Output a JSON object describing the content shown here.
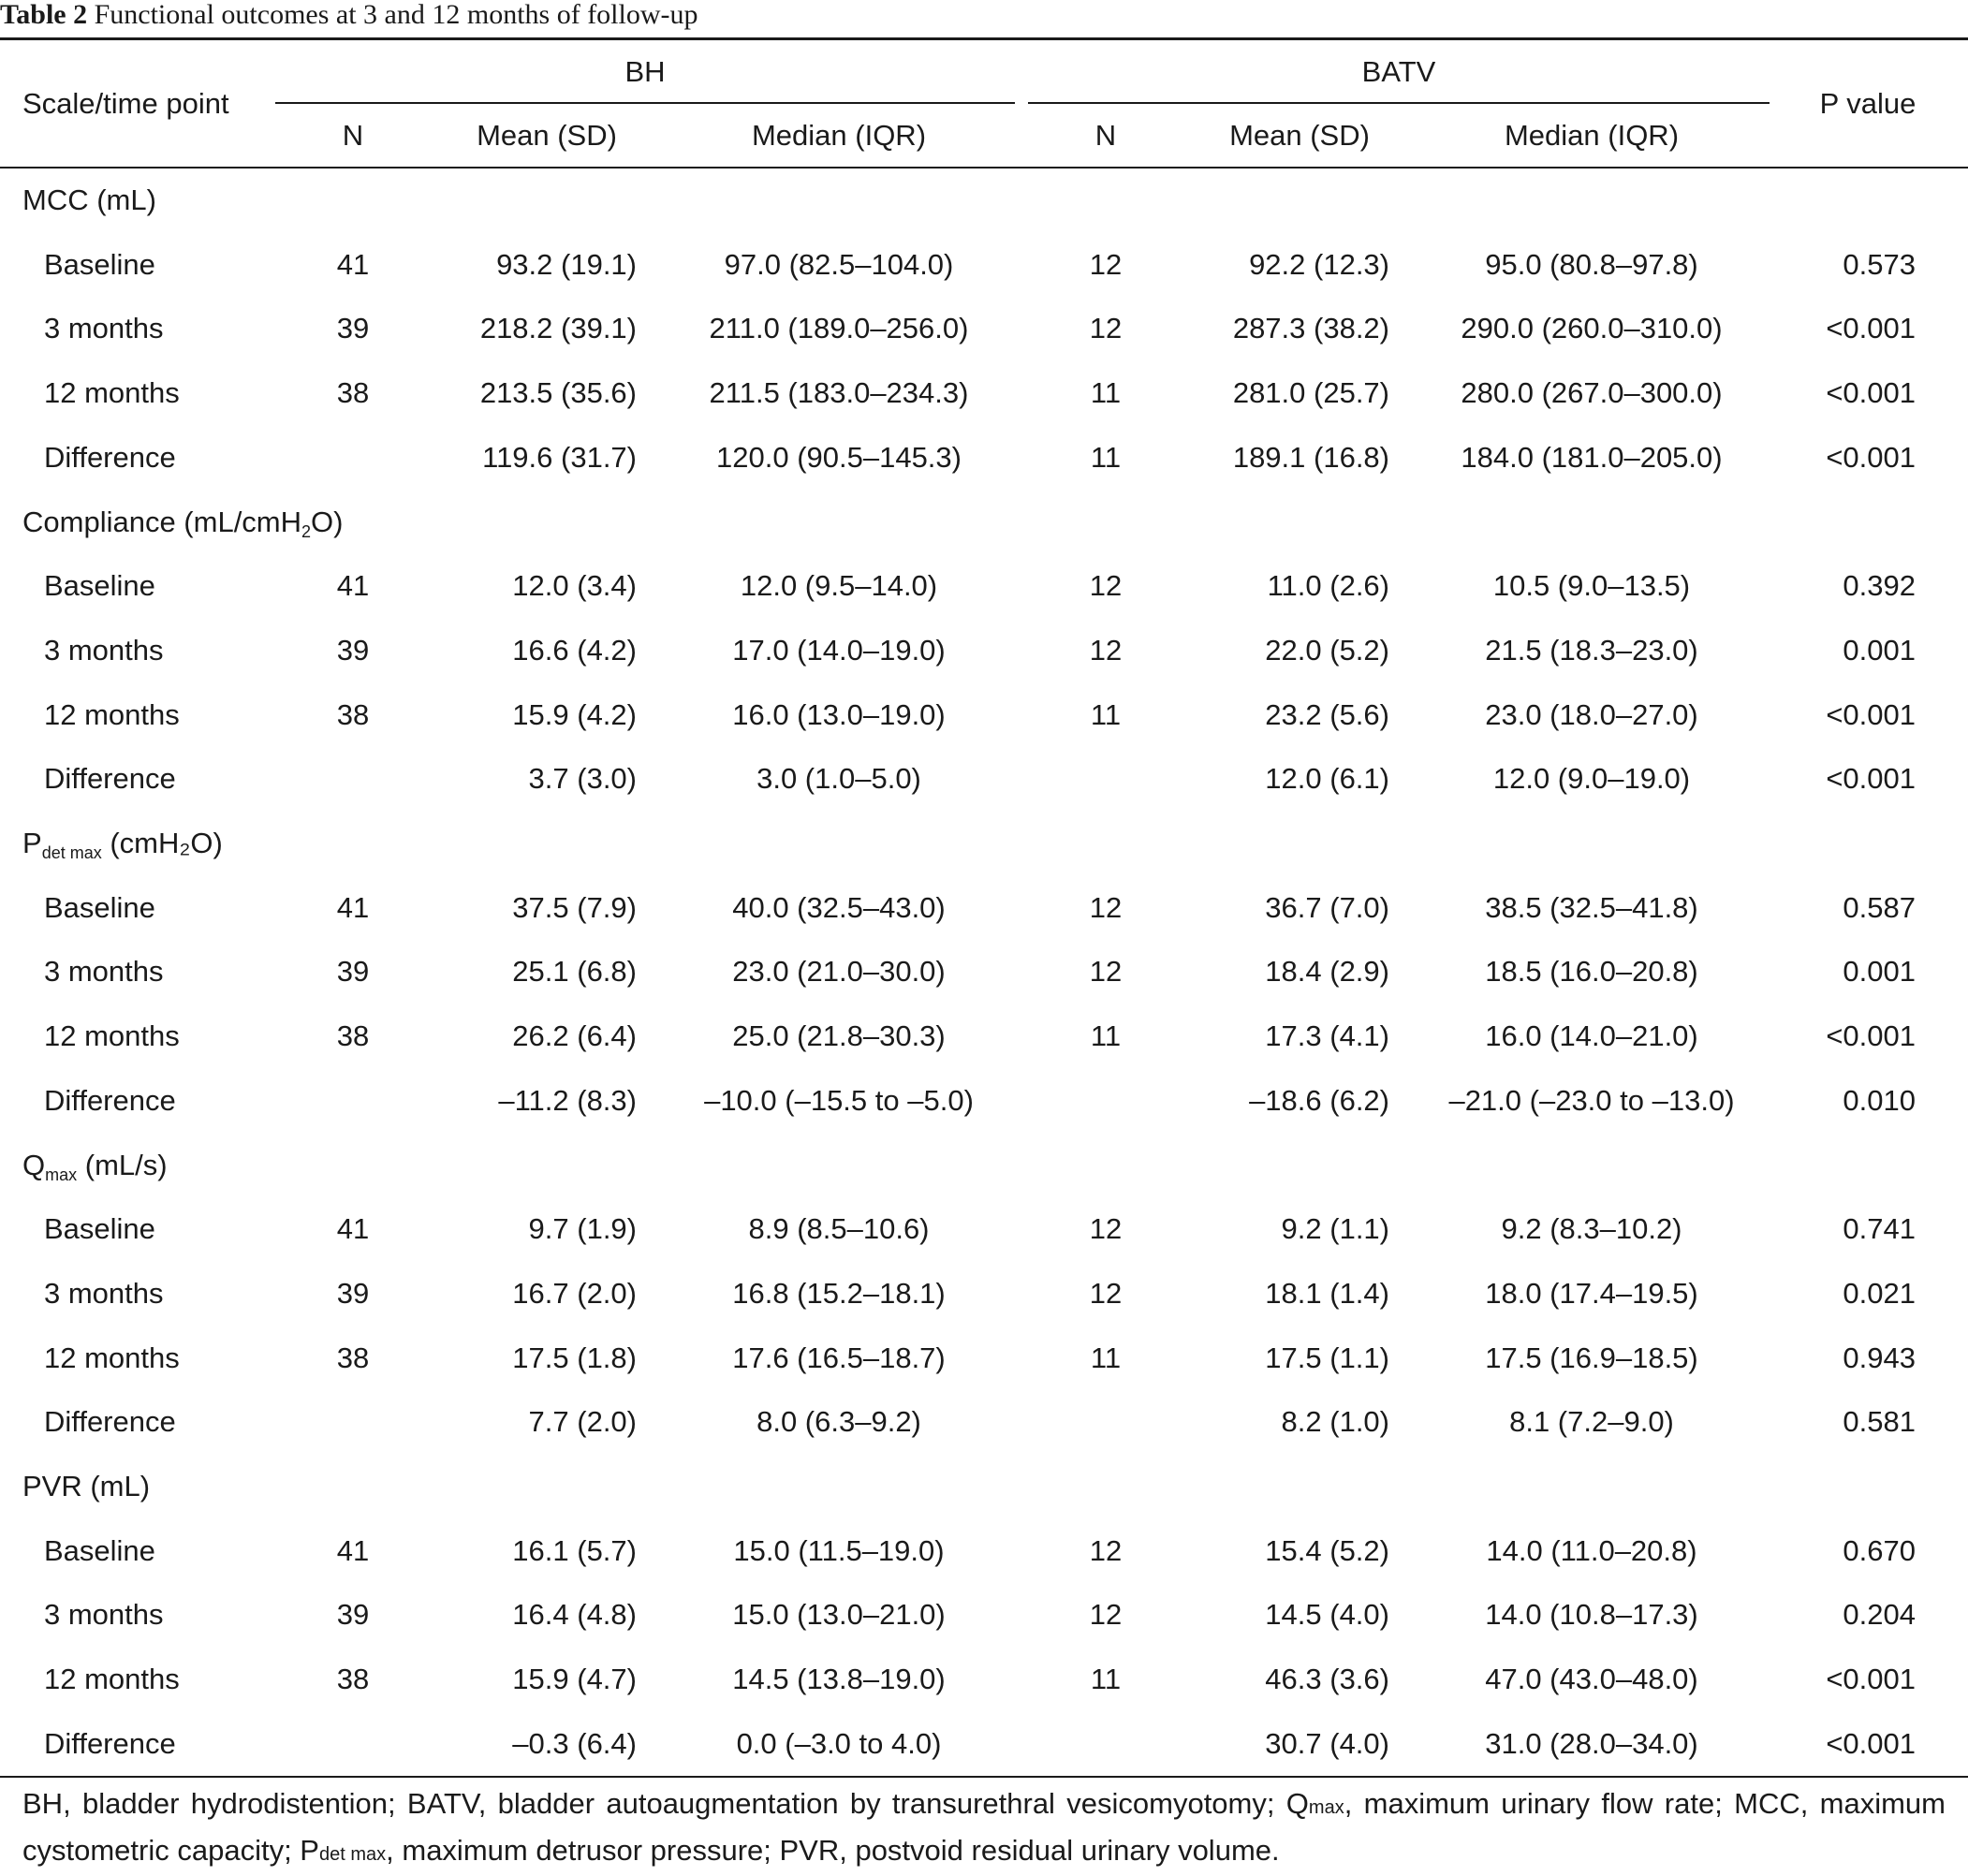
{
  "table": {
    "label": "Table 2",
    "caption": "Functional outcomes at 3 and 12 months of follow-up",
    "header": {
      "first_col": "Scale/time point",
      "group_bh": "BH",
      "group_batv": "BATV",
      "pvalue": "P value",
      "n": "N",
      "mean": "Mean (SD)",
      "median": "Median (IQR)"
    },
    "sections": [
      {
        "name_main": "MCC (mL)",
        "name_sub": "",
        "name_tail": "",
        "rows": [
          {
            "label": "Baseline",
            "bh_n": "41",
            "bh_mean": "93.2 (19.1)",
            "bh_median": "97.0 (82.5–104.0)",
            "batv_n": "12",
            "batv_mean": "92.2 (12.3)",
            "batv_median": "95.0 (80.8–97.8)",
            "p": "0.573"
          },
          {
            "label": "3 months",
            "bh_n": "39",
            "bh_mean": "218.2 (39.1)",
            "bh_median": "211.0 (189.0–256.0)",
            "batv_n": "12",
            "batv_mean": "287.3 (38.2)",
            "batv_median": "290.0 (260.0–310.0)",
            "p": "<0.001"
          },
          {
            "label": "12 months",
            "bh_n": "38",
            "bh_mean": "213.5 (35.6)",
            "bh_median": "211.5 (183.0–234.3)",
            "batv_n": "11",
            "batv_mean": "281.0 (25.7)",
            "batv_median": "280.0 (267.0–300.0)",
            "p": "<0.001"
          },
          {
            "label": "Difference",
            "bh_n": "",
            "bh_mean": "119.6 (31.7)",
            "bh_median": "120.0 (90.5–145.3)",
            "batv_n": "11",
            "batv_mean": "189.1 (16.8)",
            "batv_median": "184.0 (181.0–205.0)",
            "p": "<0.001"
          }
        ]
      },
      {
        "name_main": "Compliance (mL/cmH",
        "name_sub": "2",
        "name_tail": "O)",
        "rows": [
          {
            "label": "Baseline",
            "bh_n": "41",
            "bh_mean": "12.0 (3.4)",
            "bh_median": "12.0 (9.5–14.0)",
            "batv_n": "12",
            "batv_mean": "11.0 (2.6)",
            "batv_median": "10.5 (9.0–13.5)",
            "p": "0.392"
          },
          {
            "label": "3 months",
            "bh_n": "39",
            "bh_mean": "16.6 (4.2)",
            "bh_median": "17.0 (14.0–19.0)",
            "batv_n": "12",
            "batv_mean": "22.0 (5.2)",
            "batv_median": "21.5 (18.3–23.0)",
            "p": "0.001"
          },
          {
            "label": "12 months",
            "bh_n": "38",
            "bh_mean": "15.9 (4.2)",
            "bh_median": "16.0 (13.0–19.0)",
            "batv_n": "11",
            "batv_mean": "23.2 (5.6)",
            "batv_median": "23.0 (18.0–27.0)",
            "p": "<0.001"
          },
          {
            "label": "Difference",
            "bh_n": "",
            "bh_mean": "3.7 (3.0)",
            "bh_median": "3.0 (1.0–5.0)",
            "batv_n": "",
            "batv_mean": "12.0 (6.1)",
            "batv_median": "12.0 (9.0–19.0)",
            "p": "<0.001"
          }
        ]
      },
      {
        "name_main": "P",
        "name_sub": "det max",
        "name_tail": " (cmH₂O)",
        "rows": [
          {
            "label": "Baseline",
            "bh_n": "41",
            "bh_mean": "37.5 (7.9)",
            "bh_median": "40.0 (32.5–43.0)",
            "batv_n": "12",
            "batv_mean": "36.7 (7.0)",
            "batv_median": "38.5 (32.5–41.8)",
            "p": "0.587"
          },
          {
            "label": "3 months",
            "bh_n": "39",
            "bh_mean": "25.1 (6.8)",
            "bh_median": "23.0 (21.0–30.0)",
            "batv_n": "12",
            "batv_mean": "18.4 (2.9)",
            "batv_median": "18.5 (16.0–20.8)",
            "p": "0.001"
          },
          {
            "label": "12 months",
            "bh_n": "38",
            "bh_mean": "26.2 (6.4)",
            "bh_median": "25.0 (21.8–30.3)",
            "batv_n": "11",
            "batv_mean": "17.3 (4.1)",
            "batv_median": "16.0 (14.0–21.0)",
            "p": "<0.001"
          },
          {
            "label": "Difference",
            "bh_n": "",
            "bh_mean": "–11.2 (8.3)",
            "bh_median": "–10.0 (–15.5 to –5.0)",
            "batv_n": "",
            "batv_mean": "–18.6 (6.2)",
            "batv_median": "–21.0 (–23.0 to –13.0)",
            "p": "0.010"
          }
        ]
      },
      {
        "name_main": "Q",
        "name_sub": "max",
        "name_tail": " (mL/s)",
        "rows": [
          {
            "label": "Baseline",
            "bh_n": "41",
            "bh_mean": "9.7 (1.9)",
            "bh_median": "8.9 (8.5–10.6)",
            "batv_n": "12",
            "batv_mean": "9.2 (1.1)",
            "batv_median": "9.2 (8.3–10.2)",
            "p": "0.741"
          },
          {
            "label": "3 months",
            "bh_n": "39",
            "bh_mean": "16.7 (2.0)",
            "bh_median": "16.8 (15.2–18.1)",
            "batv_n": "12",
            "batv_mean": "18.1 (1.4)",
            "batv_median": "18.0 (17.4–19.5)",
            "p": "0.021"
          },
          {
            "label": "12 months",
            "bh_n": "38",
            "bh_mean": "17.5 (1.8)",
            "bh_median": "17.6 (16.5–18.7)",
            "batv_n": "11",
            "batv_mean": "17.5 (1.1)",
            "batv_median": "17.5 (16.9–18.5)",
            "p": "0.943"
          },
          {
            "label": "Difference",
            "bh_n": "",
            "bh_mean": "7.7 (2.0)",
            "bh_median": "8.0 (6.3–9.2)",
            "batv_n": "",
            "batv_mean": "8.2 (1.0)",
            "batv_median": "8.1 (7.2–9.0)",
            "p": "0.581"
          }
        ]
      },
      {
        "name_main": "PVR (mL)",
        "name_sub": "",
        "name_tail": "",
        "rows": [
          {
            "label": "Baseline",
            "bh_n": "41",
            "bh_mean": "16.1 (5.7)",
            "bh_median": "15.0 (11.5–19.0)",
            "batv_n": "12",
            "batv_mean": "15.4 (5.2)",
            "batv_median": "14.0 (11.0–20.8)",
            "p": "0.670"
          },
          {
            "label": "3 months",
            "bh_n": "39",
            "bh_mean": "16.4 (4.8)",
            "bh_median": "15.0 (13.0–21.0)",
            "batv_n": "12",
            "batv_mean": "14.5 (4.0)",
            "batv_median": "14.0 (10.8–17.3)",
            "p": "0.204"
          },
          {
            "label": "12 months",
            "bh_n": "38",
            "bh_mean": "15.9 (4.7)",
            "bh_median": "14.5 (13.8–19.0)",
            "batv_n": "11",
            "batv_mean": "46.3 (3.6)",
            "batv_median": "47.0 (43.0–48.0)",
            "p": "<0.001"
          },
          {
            "label": "Difference",
            "bh_n": "",
            "bh_mean": "–0.3 (6.4)",
            "bh_median": "0.0 (–3.0 to 4.0)",
            "batv_n": "",
            "batv_mean": "30.7 (4.0)",
            "batv_median": "31.0 (28.0–34.0)",
            "p": "<0.001"
          }
        ]
      }
    ],
    "footnote": {
      "part1": "BH, bladder hydrodistention; BATV, bladder autoaugmentation by transurethral vesicomyotomy; Q",
      "part1_small": "max",
      "part2": ", maximum urinary flow rate; MCC, maximum cystometric capacity; P",
      "part2_small": "det max",
      "part3": ", maximum detrusor pressure; PVR, postvoid residual urinary volume."
    }
  }
}
